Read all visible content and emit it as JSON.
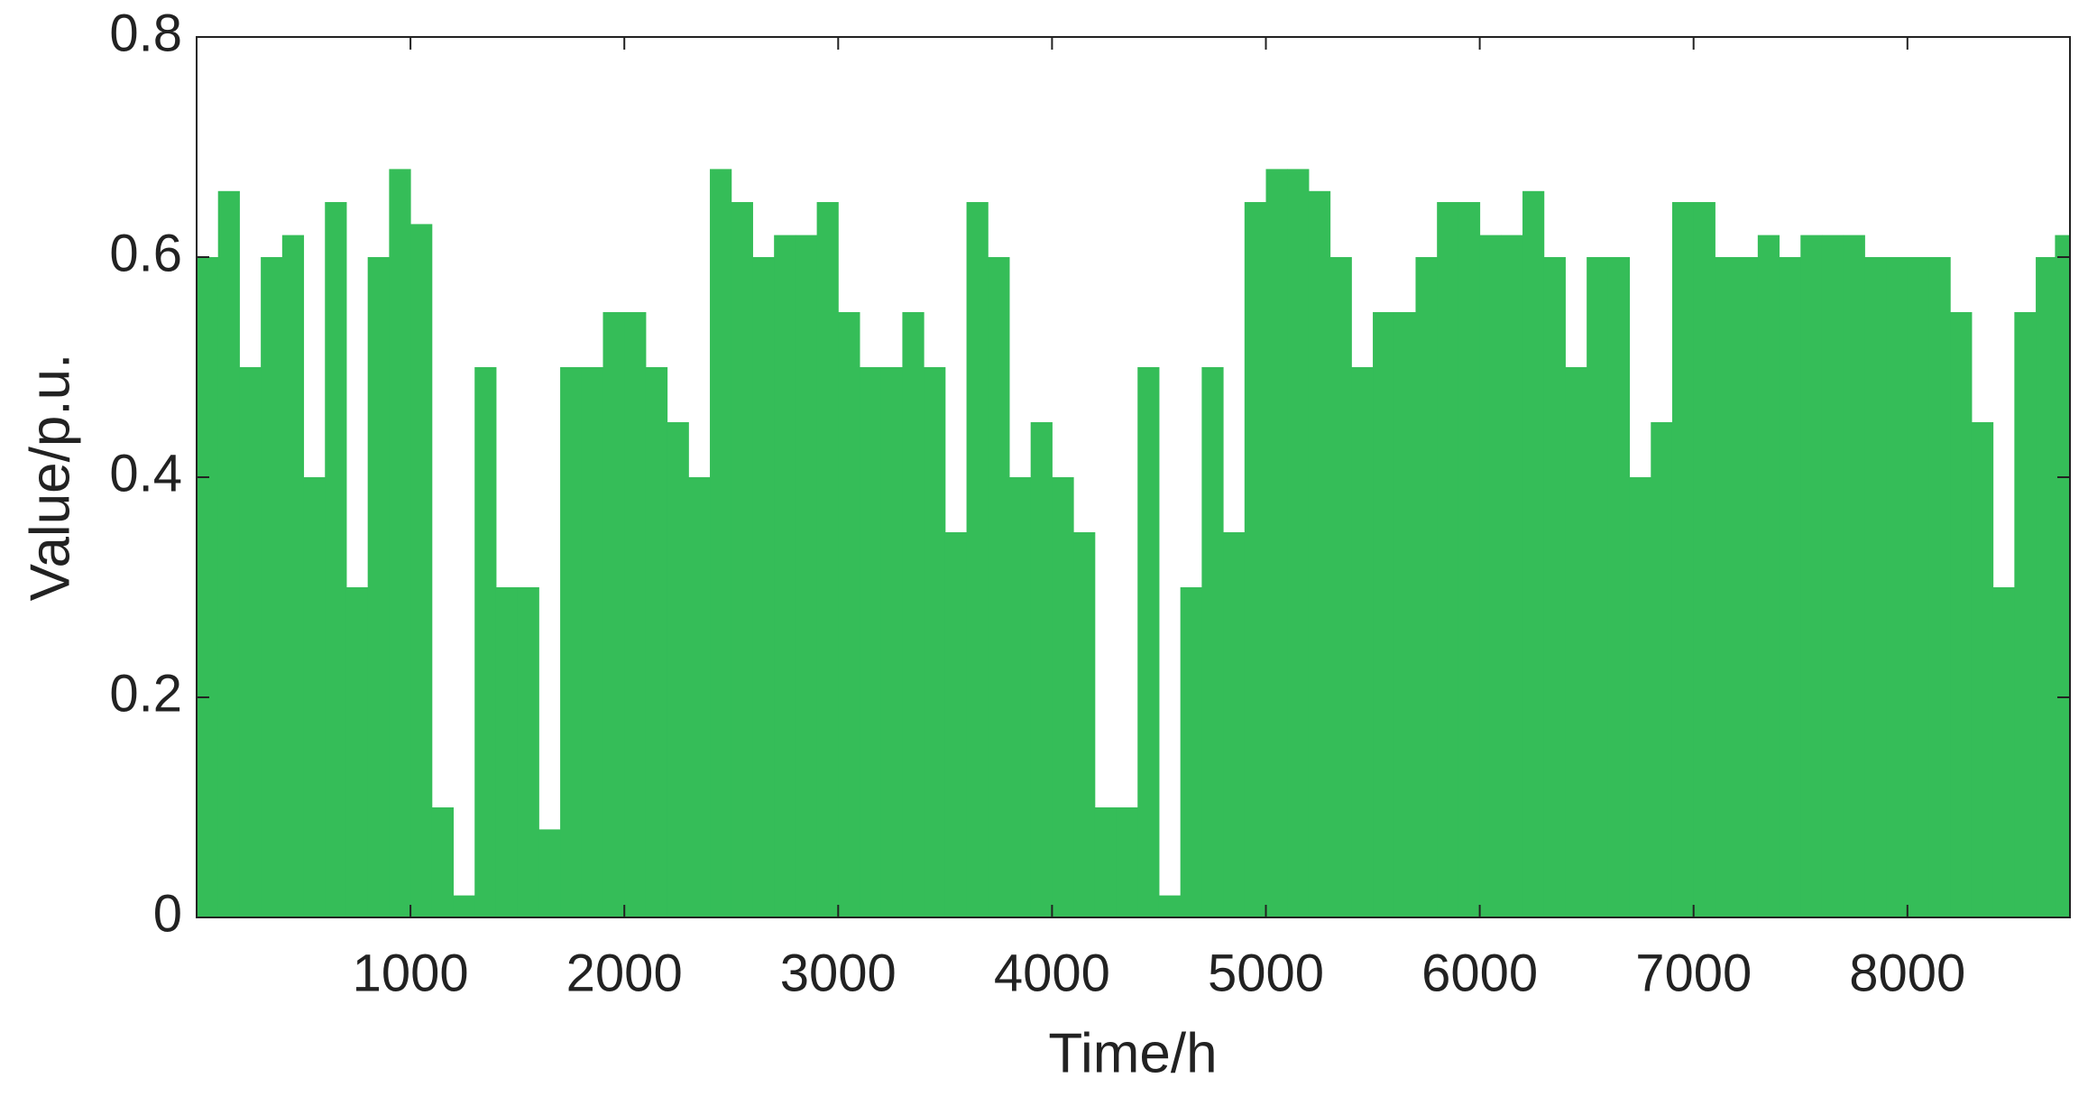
{
  "chart_data": {
    "type": "bar",
    "x_label": "Time/h",
    "y_label": "Value/p.u.",
    "color": "#35bd58",
    "x": [
      50,
      150,
      250,
      350,
      450,
      550,
      650,
      750,
      850,
      950,
      1050,
      1150,
      1250,
      1350,
      1450,
      1550,
      1650,
      1750,
      1850,
      1950,
      2050,
      2150,
      2250,
      2350,
      2450,
      2550,
      2650,
      2750,
      2850,
      2950,
      3050,
      3150,
      3250,
      3350,
      3450,
      3550,
      3650,
      3750,
      3850,
      3950,
      4050,
      4150,
      4250,
      4350,
      4450,
      4550,
      4650,
      4750,
      4850,
      4950,
      5050,
      5150,
      5250,
      5350,
      5450,
      5550,
      5650,
      5750,
      5850,
      5950,
      6050,
      6150,
      6250,
      6350,
      6450,
      6550,
      6650,
      6750,
      6850,
      6950,
      7050,
      7150,
      7250,
      7350,
      7450,
      7550,
      7650,
      7750,
      7850,
      7950,
      8050,
      8150,
      8250,
      8350,
      8450,
      8550,
      8650,
      8730
    ],
    "values": [
      0.6,
      0.66,
      0.5,
      0.6,
      0.62,
      0.4,
      0.65,
      0.3,
      0.6,
      0.68,
      0.63,
      0.1,
      0.02,
      0.5,
      0.3,
      0.3,
      0.08,
      0.5,
      0.5,
      0.55,
      0.55,
      0.5,
      0.45,
      0.4,
      0.68,
      0.65,
      0.6,
      0.62,
      0.62,
      0.65,
      0.55,
      0.5,
      0.5,
      0.55,
      0.5,
      0.35,
      0.65,
      0.6,
      0.4,
      0.45,
      0.4,
      0.35,
      0.1,
      0.1,
      0.5,
      0.02,
      0.3,
      0.5,
      0.35,
      0.65,
      0.68,
      0.68,
      0.66,
      0.6,
      0.5,
      0.55,
      0.55,
      0.6,
      0.65,
      0.65,
      0.62,
      0.62,
      0.66,
      0.6,
      0.5,
      0.6,
      0.6,
      0.4,
      0.45,
      0.65,
      0.65,
      0.6,
      0.6,
      0.62,
      0.6,
      0.62,
      0.62,
      0.62,
      0.6,
      0.6,
      0.6,
      0.6,
      0.55,
      0.45,
      0.3,
      0.55,
      0.6,
      0.62
    ],
    "xlim": [
      0,
      8760
    ],
    "xticks": [
      1000,
      2000,
      3000,
      4000,
      5000,
      6000,
      7000,
      8000
    ],
    "ylim": [
      0,
      0.8
    ],
    "yticks": [
      0,
      0.2,
      0.4,
      0.6,
      0.8
    ]
  }
}
